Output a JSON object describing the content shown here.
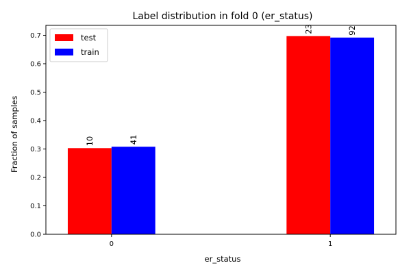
{
  "chart_data": {
    "type": "bar",
    "title": "Label distribution in fold 0 (er_status)",
    "xlabel": "er_status",
    "ylabel": "Fraction of samples",
    "categories": [
      "0",
      "1"
    ],
    "series": [
      {
        "name": "test",
        "color": "#ff0000",
        "values": [
          0.303,
          0.697
        ],
        "labels": [
          "10",
          "23"
        ]
      },
      {
        "name": "train",
        "color": "#0000ff",
        "values": [
          0.308,
          0.692
        ],
        "labels": [
          "41",
          "92"
        ]
      }
    ],
    "ylim": [
      0,
      0.735
    ],
    "yticks": [
      "0.0",
      "0.1",
      "0.2",
      "0.3",
      "0.4",
      "0.5",
      "0.6",
      "0.7"
    ],
    "grid": false,
    "legend_position": "top-left"
  }
}
